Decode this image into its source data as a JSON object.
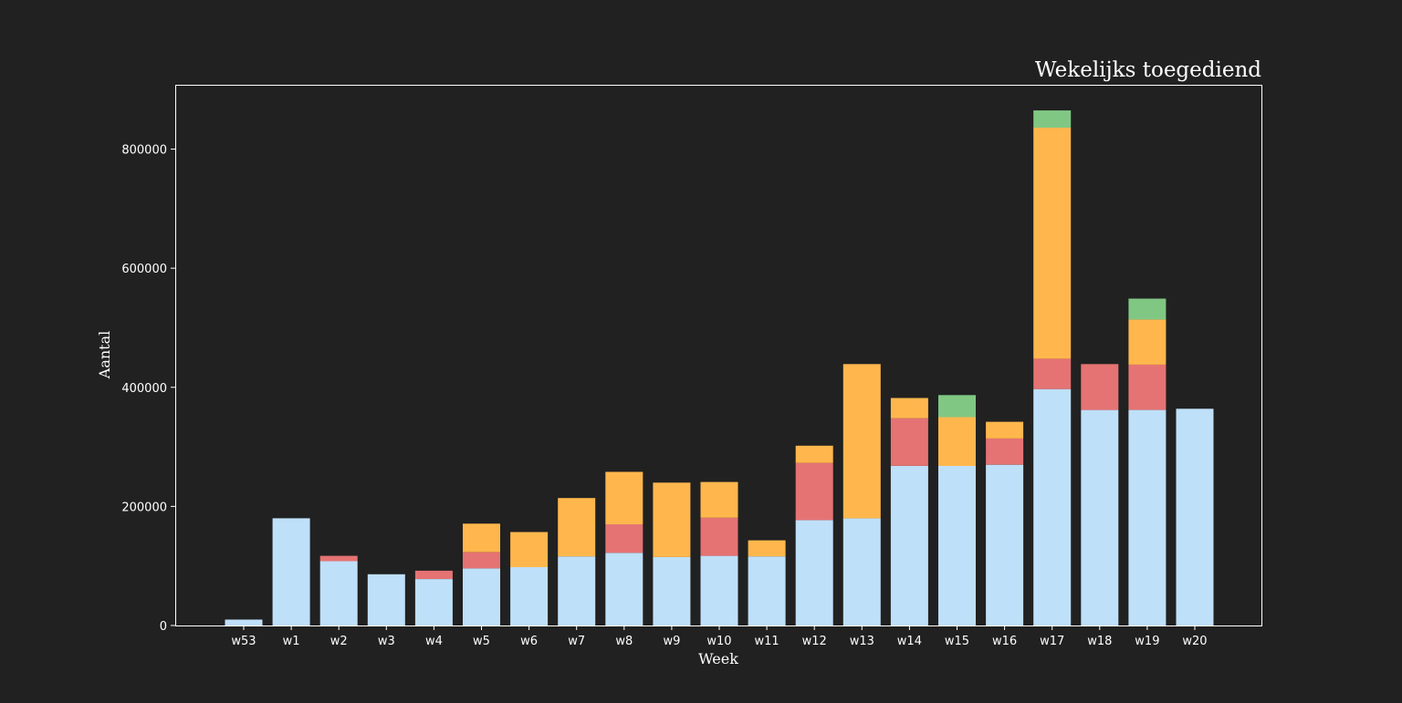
{
  "chart_data": {
    "type": "bar",
    "stacked": true,
    "title": "Wekelijks toegediend",
    "xlabel": "Week",
    "ylabel": "Aantal",
    "ylim": [
      0,
      908000
    ],
    "yticks": [
      0,
      200000,
      400000,
      600000,
      800000
    ],
    "grid": false,
    "legend": "none",
    "categories": [
      "w53",
      "w1",
      "w2",
      "w3",
      "w4",
      "w5",
      "w6",
      "w7",
      "w8",
      "w9",
      "w10",
      "w11",
      "w12",
      "w13",
      "w14",
      "w15",
      "w16",
      "w17",
      "w18",
      "w19",
      "w20"
    ],
    "series": [
      {
        "color": "#bfe0f9",
        "values": [
          10000,
          180000,
          108000,
          86000,
          78000,
          96000,
          98000,
          116000,
          122000,
          115000,
          117000,
          116000,
          177000,
          180000,
          268000,
          268000,
          270000,
          397000,
          362000,
          362000,
          364000
        ]
      },
      {
        "color": "#e57373",
        "values": [
          0,
          0,
          9000,
          0,
          14000,
          27000,
          0,
          0,
          48000,
          0,
          64000,
          0,
          96000,
          0,
          80000,
          0,
          44000,
          51000,
          77000,
          76000,
          0
        ]
      },
      {
        "color": "#ffb74d",
        "values": [
          0,
          0,
          0,
          0,
          0,
          48000,
          59000,
          98000,
          88000,
          125000,
          60000,
          27000,
          29000,
          259000,
          34000,
          82000,
          28000,
          388000,
          0,
          76000,
          0
        ]
      },
      {
        "color": "#81c784",
        "values": [
          0,
          0,
          0,
          0,
          0,
          0,
          0,
          0,
          0,
          0,
          0,
          0,
          0,
          0,
          0,
          37000,
          0,
          29000,
          0,
          35000,
          0
        ]
      }
    ]
  },
  "colors": {
    "background": "#212121",
    "axis": "#ffffff",
    "text": "#ffffff"
  }
}
